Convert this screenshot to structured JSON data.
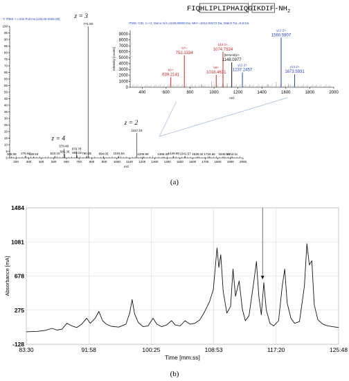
{
  "peptide": {
    "prefix": "FIQ",
    "boxed": "HLIPLIPHAIQ",
    "middle": "G",
    "boxed2": "IKDIF",
    "suffix": "-NH",
    "subscript": "2"
  },
  "panel_a": {
    "label": "(a)",
    "header_lines": [
      "T: ITMS + c ESI Full ms [100.00-2000.00]"
    ],
    "ms1_xlabel": "m/z",
    "ms1_y_ticks": [
      "100",
      "95",
      "90",
      "85",
      "80",
      "75",
      "70",
      "65",
      "60",
      "55",
      "50",
      "45",
      "40",
      "35",
      "30",
      "25",
      "20",
      "15",
      "10",
      "5",
      "0"
    ],
    "ms1_x_ticks": [
      "200",
      "300",
      "400",
      "500",
      "600",
      "700",
      "800",
      "900",
      "1000",
      "1100",
      "1200",
      "1300",
      "1400",
      "1500",
      "1600",
      "1700",
      "1800",
      "1900",
      "2000"
    ],
    "charge_labels": [
      {
        "text": "z = 3",
        "mz": 771.6
      },
      {
        "text": "z = 4",
        "mz": 579.48
      },
      {
        "text": "z = 2",
        "mz": 1157.19
      }
    ],
    "inset_header": "ITMS, CID, z=+2, Mono m/z=1158.80000 Da, MH+=2312.59272 Da, Match Tol.=0.8 Da",
    "inset_ylabel": "Intensity [counts]",
    "inset_xlabel": "m/z",
    "inset_y_ticks": [
      "9000",
      "8000",
      "7000",
      "6000",
      "5000",
      "4000",
      "3000",
      "2000",
      "1000",
      "0"
    ],
    "inset_x_ticks": [
      "400",
      "600",
      "800",
      "1000",
      "1200",
      "1400",
      "1600",
      "1800",
      "2000"
    ],
    "precursor_label": "[M-NH3]2+",
    "precursor_mz": "1148.0977"
  },
  "chart_data": [
    {
      "type": "line",
      "title": "",
      "xlabel": "m/z",
      "ylabel": "",
      "xlim": [
        150,
        2000
      ],
      "ylim": [
        0,
        100
      ],
      "peaks": [
        {
          "mz": 165.08,
          "rel": 1,
          "label": "165.08"
        },
        {
          "mz": 276.84,
          "rel": 1.5,
          "label": "276.84"
        },
        {
          "mz": 338.63,
          "rel": 1,
          "label": "338.63"
        },
        {
          "mz": 510.15,
          "rel": 1.5,
          "label": "510.15"
        },
        {
          "mz": 579.48,
          "rel": 7,
          "label": "579.48"
        },
        {
          "mz": 586.36,
          "rel": 3,
          "label": "586.36"
        },
        {
          "mz": 679.78,
          "rel": 5,
          "label": "679.78"
        },
        {
          "mz": 683.02,
          "rel": 2,
          "label": "683.02"
        },
        {
          "mz": 760.35,
          "rel": 1.5,
          "label": "760.35"
        },
        {
          "mz": 771.6,
          "rel": 100,
          "label": "771.60"
        },
        {
          "mz": 894.05,
          "rel": 1.2,
          "label": "894.05"
        },
        {
          "mz": 1015.54,
          "rel": 1.5,
          "label": "1015.54"
        },
        {
          "mz": 1157.19,
          "rel": 19,
          "label": "1157.19"
        },
        {
          "mz": 1205.9,
          "rel": 1,
          "label": "1205.90"
        },
        {
          "mz": 1366.32,
          "rel": 1,
          "label": "1366.32"
        },
        {
          "mz": 1449.85,
          "rel": 1.5,
          "label": "1449.85"
        },
        {
          "mz": 1541.57,
          "rel": 1.2,
          "label": "1541.57"
        },
        {
          "mz": 1639.32,
          "rel": 1,
          "label": "1639.32"
        },
        {
          "mz": 1734.66,
          "rel": 1,
          "label": "1734.66"
        },
        {
          "mz": 1849.51,
          "rel": 1,
          "label": "1849.51"
        },
        {
          "mz": 1913.11,
          "rel": 1,
          "label": "1913.11"
        }
      ]
    },
    {
      "type": "bar",
      "title": "",
      "xlabel": "m/z",
      "ylabel": "Intensity [counts]",
      "xlim": [
        300,
        2000
      ],
      "ylim": [
        0,
        9600
      ],
      "ions": [
        {
          "mz": 639.2141,
          "intensity": 1700,
          "label": "b6+",
          "mzlabel": "639.2141",
          "color": "#d62020"
        },
        {
          "mz": 752.1334,
          "intensity": 5400,
          "label": "b7+",
          "mzlabel": "752.1334",
          "color": "#d62020"
        },
        {
          "mz": 1018.4631,
          "intensity": 2100,
          "label": "b9+",
          "mzlabel": "1018.4631",
          "color": "#d62020"
        },
        {
          "mz": 1074.7524,
          "intensity": 6000,
          "label": "b19 2+",
          "mzlabel": "1074.7524",
          "color": "#d62020"
        },
        {
          "mz": 1148.0977,
          "intensity": 4200,
          "label": "[M-NH3]2+",
          "mzlabel": "1148.0977",
          "color": "#111111"
        },
        {
          "mz": 1237.2457,
          "intensity": 2500,
          "label": "y11 2+",
          "mzlabel": "1237.2457",
          "color": "#1f3fcf"
        },
        {
          "mz": 1560.5907,
          "intensity": 8400,
          "label": "y13 2+",
          "mzlabel": "1560.5907",
          "color": "#1f3fcf"
        },
        {
          "mz": 1673.5931,
          "intensity": 2200,
          "label": "y14 2+",
          "mzlabel": "1673.5931",
          "color": "#1f3fcf"
        }
      ],
      "minor_peaks": [
        {
          "mz": 980,
          "intensity": 1000
        },
        {
          "mz": 900,
          "intensity": 500
        },
        {
          "mz": 1110,
          "intensity": 700
        },
        {
          "mz": 1300,
          "intensity": 400
        },
        {
          "mz": 1450,
          "intensity": 500
        },
        {
          "mz": 1520,
          "intensity": 900
        },
        {
          "mz": 1620,
          "intensity": 600
        }
      ]
    },
    {
      "type": "line",
      "title": "",
      "xlabel": "Time [mm:ss]",
      "ylabel": "Absorbance [mA]",
      "xlim_seconds": [
        5010,
        7548
      ],
      "ylim": [
        -128,
        1484
      ],
      "x_ticks": [
        "83:30",
        "91:58",
        "100:25",
        "108:53",
        "117:20",
        "125:48"
      ],
      "y_ticks": [
        "1484",
        "1081",
        "678",
        "275",
        "-128"
      ],
      "grid": true,
      "arrow_at": "115:30",
      "trace": [
        [
          "83:30",
          20
        ],
        [
          "85:00",
          25
        ],
        [
          "86:00",
          35
        ],
        [
          "87:00",
          60
        ],
        [
          "87:40",
          40
        ],
        [
          "88:20",
          50
        ],
        [
          "89:00",
          120
        ],
        [
          "89:40",
          90
        ],
        [
          "90:20",
          70
        ],
        [
          "91:00",
          110
        ],
        [
          "91:40",
          180
        ],
        [
          "92:10",
          120
        ],
        [
          "92:50",
          180
        ],
        [
          "93:20",
          260
        ],
        [
          "93:50",
          150
        ],
        [
          "94:20",
          110
        ],
        [
          "95:00",
          85
        ],
        [
          "96:00",
          75
        ],
        [
          "97:00",
          110
        ],
        [
          "97:30",
          240
        ],
        [
          "97:50",
          400
        ],
        [
          "98:10",
          230
        ],
        [
          "98:40",
          130
        ],
        [
          "99:20",
          80
        ],
        [
          "100:00",
          90
        ],
        [
          "100:40",
          180
        ],
        [
          "101:10",
          110
        ],
        [
          "101:50",
          80
        ],
        [
          "102:30",
          100
        ],
        [
          "103:10",
          150
        ],
        [
          "103:40",
          100
        ],
        [
          "104:20",
          90
        ],
        [
          "105:00",
          150
        ],
        [
          "105:40",
          110
        ],
        [
          "106:20",
          120
        ],
        [
          "107:00",
          160
        ],
        [
          "107:40",
          260
        ],
        [
          "108:20",
          380
        ],
        [
          "108:50",
          520
        ],
        [
          "109:20",
          1010
        ],
        [
          "109:35",
          780
        ],
        [
          "109:50",
          930
        ],
        [
          "110:10",
          500
        ],
        [
          "110:40",
          240
        ],
        [
          "111:10",
          320
        ],
        [
          "111:30",
          760
        ],
        [
          "111:50",
          440
        ],
        [
          "112:20",
          620
        ],
        [
          "112:45",
          290
        ],
        [
          "113:10",
          150
        ],
        [
          "113:40",
          210
        ],
        [
          "114:20",
          620
        ],
        [
          "114:40",
          850
        ],
        [
          "115:00",
          430
        ],
        [
          "115:20",
          220
        ],
        [
          "115:40",
          600
        ],
        [
          "116:00",
          280
        ],
        [
          "116:30",
          120
        ],
        [
          "117:00",
          90
        ],
        [
          "117:40",
          150
        ],
        [
          "118:10",
          560
        ],
        [
          "118:30",
          760
        ],
        [
          "118:50",
          360
        ],
        [
          "119:20",
          180
        ],
        [
          "119:50",
          120
        ],
        [
          "120:30",
          140
        ],
        [
          "121:10",
          560
        ],
        [
          "121:30",
          1060
        ],
        [
          "121:50",
          810
        ],
        [
          "122:10",
          860
        ],
        [
          "122:30",
          340
        ],
        [
          "123:00",
          160
        ],
        [
          "123:40",
          110
        ],
        [
          "124:20",
          90
        ],
        [
          "125:00",
          80
        ],
        [
          "125:48",
          70
        ]
      ]
    }
  ],
  "panel_b": {
    "label": "(b)"
  }
}
